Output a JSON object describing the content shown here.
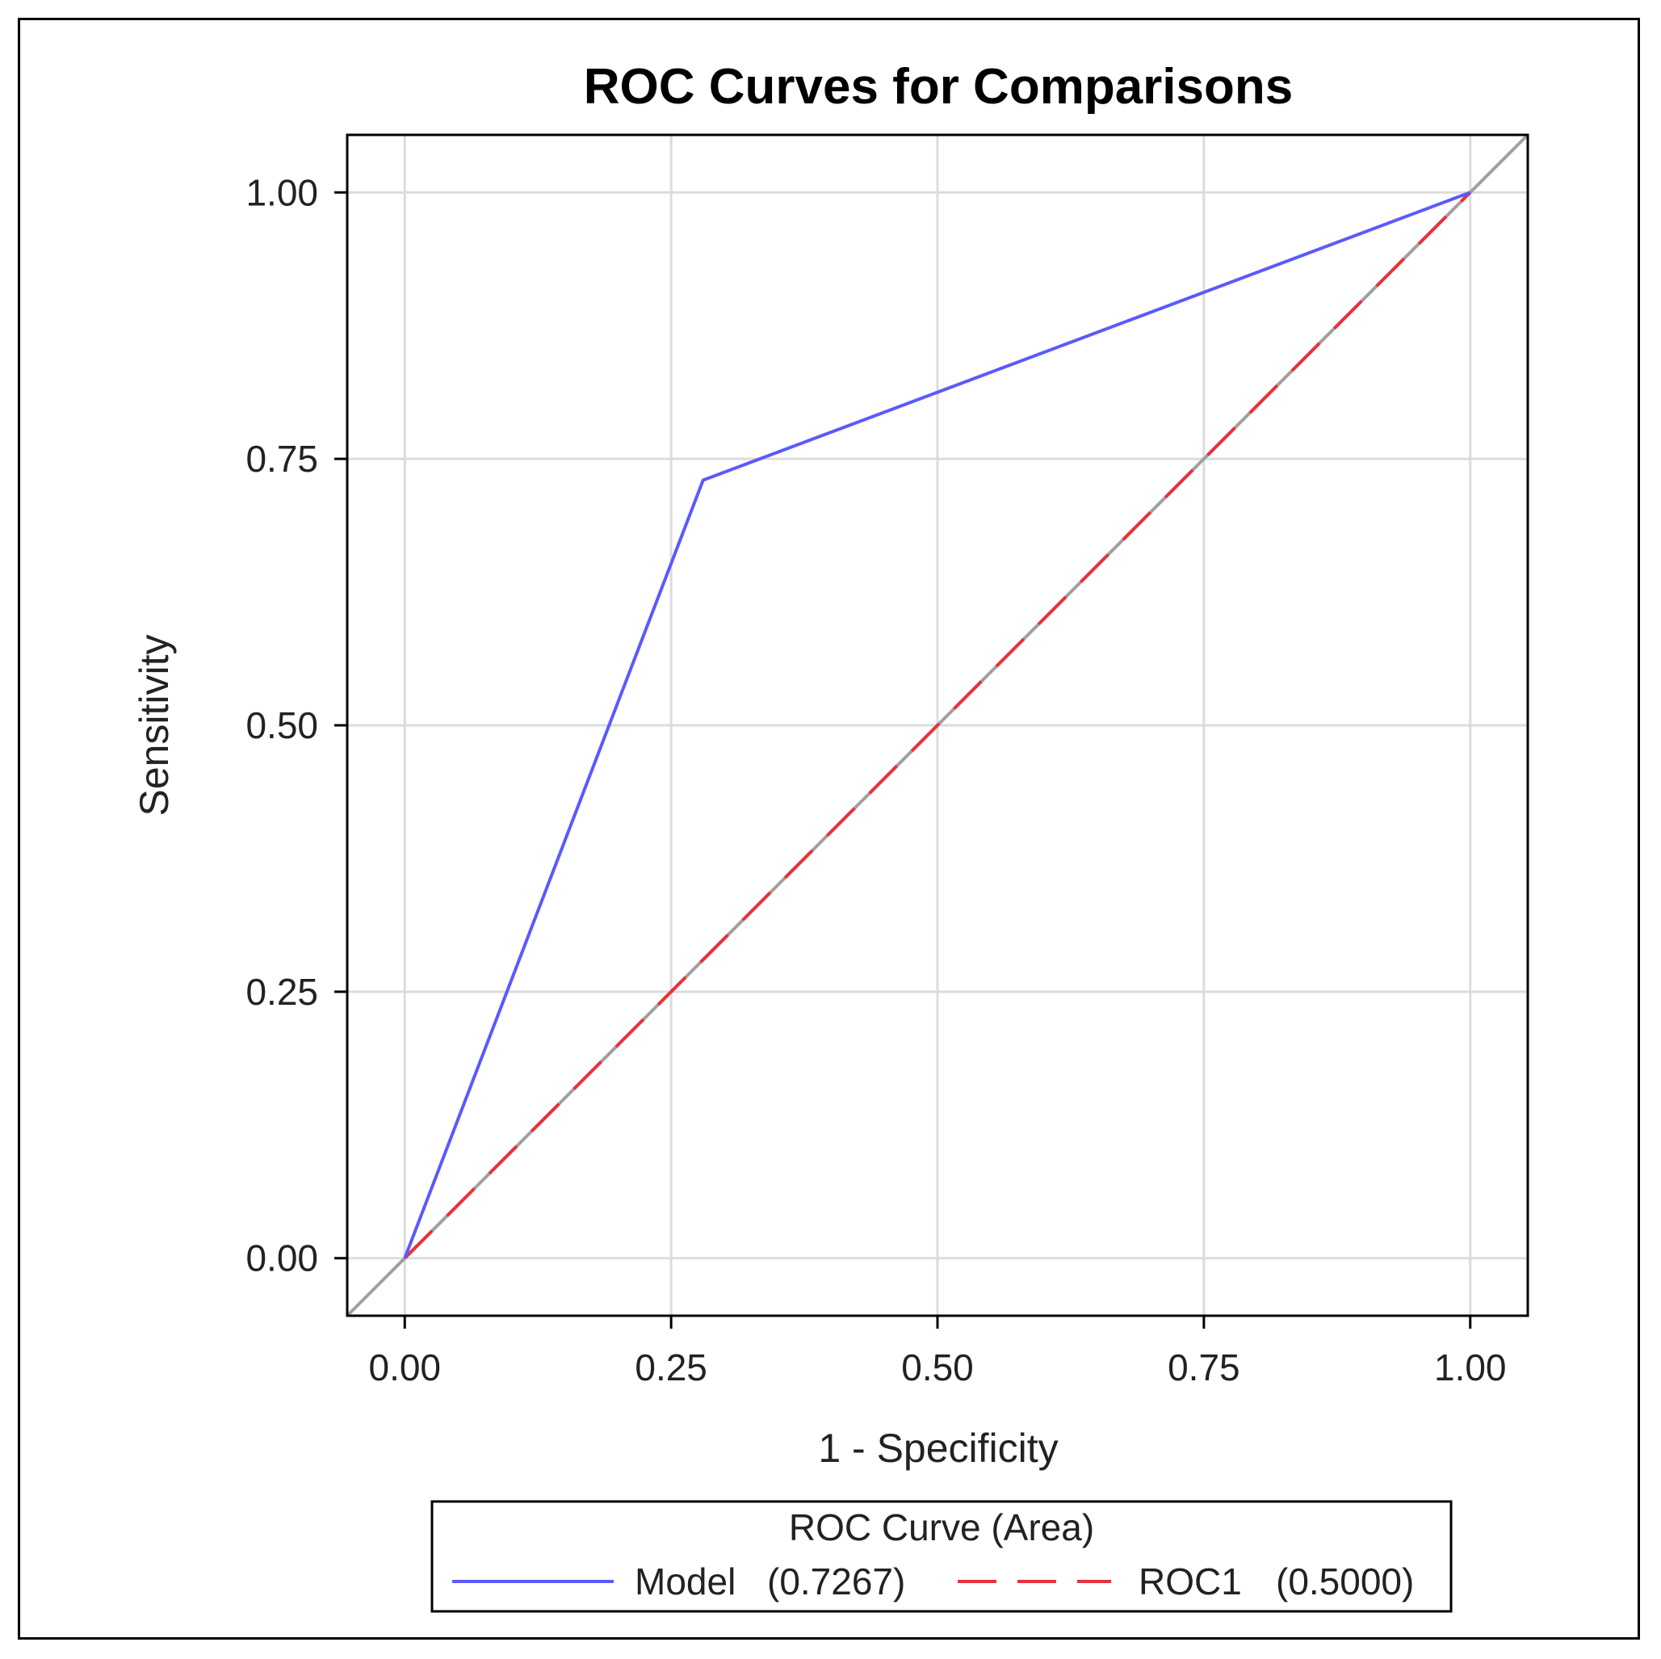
{
  "chart_data": {
    "type": "line",
    "title": "ROC Curves for Comparisons",
    "xlabel": "1 - Specificity",
    "ylabel": "Sensitivity",
    "xlim": [
      -0.054,
      1.054
    ],
    "ylim": [
      -0.054,
      1.054
    ],
    "xticks": [
      "0.00",
      "0.25",
      "0.50",
      "0.75",
      "1.00"
    ],
    "yticks": [
      "0.00",
      "0.25",
      "0.50",
      "0.75",
      "1.00"
    ],
    "tick_values": [
      0,
      0.25,
      0.5,
      0.75,
      1.0
    ],
    "grid": true,
    "reference_line": {
      "x": [
        -0.054,
        1.054
      ],
      "y": [
        -0.054,
        1.054
      ],
      "color": "#a0a0a0"
    },
    "series": [
      {
        "name": "Model",
        "area": "(0.7267)",
        "x": [
          0,
          0.28,
          1.0
        ],
        "y": [
          0,
          0.73,
          1.0
        ],
        "color": "#5a5aff",
        "dash": "solid"
      },
      {
        "name": "ROC1",
        "area": "(0.5000)",
        "x": [
          0,
          1.0
        ],
        "y": [
          0,
          1.0
        ],
        "color": "#e8323c",
        "dash": "dashed"
      }
    ],
    "legend": {
      "title": "ROC Curve (Area)",
      "position": "bottom"
    }
  }
}
